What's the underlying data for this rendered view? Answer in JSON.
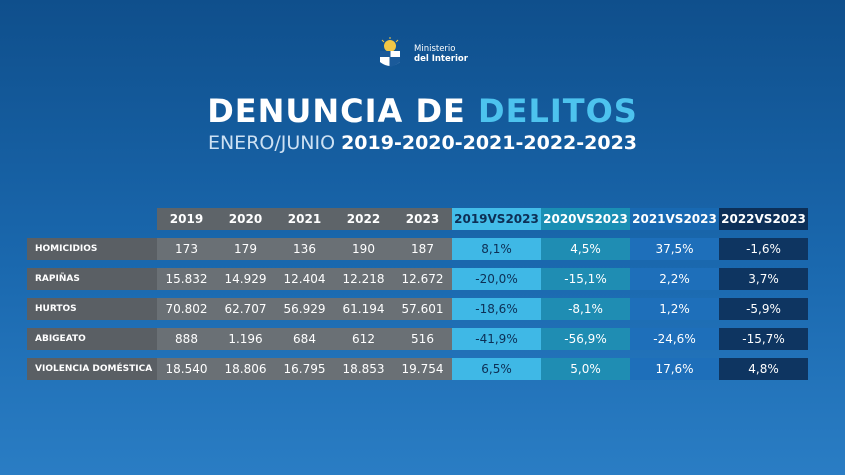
{
  "logo": {
    "line1": "Ministerio",
    "line2": "del Interior",
    "emblem": "coat-of-arms-icon"
  },
  "title": {
    "part1": "DENUNCIA DE ",
    "part2": "DELITOS"
  },
  "subtitle": {
    "pre": "ENERO/JUNIO ",
    "years": "2019-2020-2021-2022-2023"
  },
  "colors": {
    "accent": "#4dc3ee",
    "col1": "#3fb8e6",
    "col2": "#1f8db3",
    "col3": "#1e6fba",
    "col4": "#0e3561"
  },
  "table": {
    "headers": [
      "2019",
      "2020",
      "2021",
      "2022",
      "2023",
      "2019VS2023",
      "2020VS2023",
      "2021VS2023",
      "2022VS2023"
    ],
    "rows": [
      {
        "label": "HOMICIDIOS",
        "values": [
          "173",
          "179",
          "136",
          "190",
          "187"
        ],
        "changes": [
          "8,1%",
          "4,5%",
          "37,5%",
          "-1,6%"
        ]
      },
      {
        "label": "RAPIÑAS",
        "values": [
          "15.832",
          "14.929",
          "12.404",
          "12.218",
          "12.672"
        ],
        "changes": [
          "-20,0%",
          "-15,1%",
          "2,2%",
          "3,7%"
        ]
      },
      {
        "label": "HURTOS",
        "values": [
          "70.802",
          "62.707",
          "56.929",
          "61.194",
          "57.601"
        ],
        "changes": [
          "-18,6%",
          "-8,1%",
          "1,2%",
          "-5,9%"
        ]
      },
      {
        "label": "ABIGEATO",
        "values": [
          "888",
          "1.196",
          "684",
          "612",
          "516"
        ],
        "changes": [
          "-41,9%",
          "-56,9%",
          "-24,6%",
          "-15,7%"
        ]
      },
      {
        "label": "VIOLENCIA DOMÉSTICA",
        "values": [
          "18.540",
          "18.806",
          "16.795",
          "18.853",
          "19.754"
        ],
        "changes": [
          "6,5%",
          "5,0%",
          "17,6%",
          "4,8%"
        ]
      }
    ]
  }
}
